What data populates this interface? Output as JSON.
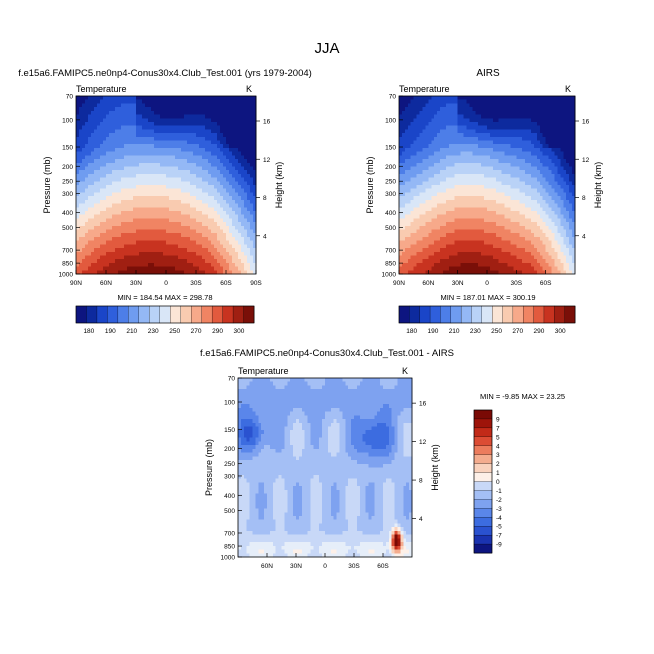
{
  "page": {
    "season": "JJA",
    "panel_model_title": "f.e15a6.FAMIPC5.ne0np4-Conus30x4.Club_Test.001 (yrs 1979-2004)",
    "panel_obs_title": "AIRS",
    "panel_diff_title": "f.e15a6.FAMIPC5.ne0np4-Conus30x4.Club_Test.001 - AIRS"
  },
  "colors": {
    "abs_palette": [
      "#0d1580",
      "#0d2a9e",
      "#1a45c8",
      "#2f5fdc",
      "#4d7ee8",
      "#6f9cf0",
      "#94b8f5",
      "#b9d2f7",
      "#d9e6f7",
      "#fbe5d6",
      "#f9cbb0",
      "#f7a98a",
      "#f08463",
      "#e25a3e",
      "#c83320",
      "#a01f12",
      "#7a0f08"
    ],
    "diff_palette": [
      "#0d1580",
      "#1a33b0",
      "#2a52d0",
      "#3c6ce0",
      "#5a86ea",
      "#7ea2f0",
      "#a4bff5",
      "#c8d8f7",
      "#e6eef9",
      "#fdf0e8",
      "#f9d2bd",
      "#f4ac8e",
      "#ec7c5d",
      "#dc4c34",
      "#c22a18",
      "#9e140a",
      "#7a0a05"
    ]
  },
  "chart_data": [
    {
      "type": "heatmap",
      "title": "f.e15a6.FAMIPC5.ne0np4-Conus30x4.Club_Test.001 (yrs 1979-2004)",
      "variable": "Temperature",
      "units": "K",
      "xlabel": "",
      "ylabel": "Pressure (mb)",
      "ylabel_right": "Height (km)",
      "x_ticks": [
        "90N",
        "60N",
        "30N",
        "0",
        "30S",
        "60S",
        "90S"
      ],
      "x_values": [
        90,
        60,
        30,
        0,
        -30,
        -60,
        -90
      ],
      "y_ticks": [
        "70",
        "100",
        "150",
        "200",
        "250",
        "300",
        "400",
        "500",
        "700",
        "850",
        "1000"
      ],
      "y_values": [
        70,
        100,
        150,
        200,
        250,
        300,
        400,
        500,
        700,
        850,
        1000
      ],
      "y_scale": "log",
      "right_ticks": [
        "16",
        "12",
        "8",
        "4"
      ],
      "right_values": [
        16,
        12,
        8,
        4
      ],
      "min": 184.54,
      "max": 298.78,
      "stats_text": "MIN = 184.54   MAX = 298.78",
      "levels": [
        180,
        185,
        190,
        200,
        210,
        220,
        230,
        240,
        250,
        260,
        270,
        280,
        290,
        295,
        300
      ],
      "colorbar_labels": [
        "180",
        "190",
        "210",
        "230",
        "250",
        "270",
        "290",
        "300"
      ]
    },
    {
      "type": "heatmap",
      "title": "AIRS",
      "variable": "Temperature",
      "units": "K",
      "xlabel": "",
      "ylabel": "Pressure (mb)",
      "ylabel_right": "Height (km)",
      "x_ticks": [
        "90N",
        "60N",
        "30N",
        "0",
        "30S",
        "60S"
      ],
      "x_values": [
        90,
        60,
        30,
        0,
        -30,
        -60
      ],
      "y_ticks": [
        "70",
        "100",
        "150",
        "200",
        "250",
        "300",
        "400",
        "500",
        "700",
        "850",
        "1000"
      ],
      "y_values": [
        70,
        100,
        150,
        200,
        250,
        300,
        400,
        500,
        700,
        850,
        1000
      ],
      "y_scale": "log",
      "right_ticks": [
        "16",
        "12",
        "8",
        "4"
      ],
      "right_values": [
        16,
        12,
        8,
        4
      ],
      "min": 187.01,
      "max": 300.19,
      "stats_text": "MIN = 187.01   MAX = 300.19",
      "levels": [
        180,
        185,
        190,
        200,
        210,
        220,
        230,
        240,
        250,
        260,
        270,
        280,
        290,
        295,
        300
      ],
      "colorbar_labels": [
        "180",
        "190",
        "210",
        "230",
        "250",
        "270",
        "290",
        "300"
      ]
    },
    {
      "type": "heatmap",
      "title": "f.e15a6.FAMIPC5.ne0np4-Conus30x4.Club_Test.001 - AIRS",
      "variable": "Temperature",
      "units": "K",
      "xlabel": "",
      "ylabel": "Pressure (mb)",
      "ylabel_right": "Height (km)",
      "x_ticks": [
        "60N",
        "30N",
        "0",
        "30S",
        "60S"
      ],
      "x_values": [
        60,
        30,
        0,
        -30,
        -60
      ],
      "y_ticks": [
        "70",
        "100",
        "150",
        "200",
        "250",
        "300",
        "400",
        "500",
        "700",
        "850",
        "1000"
      ],
      "y_values": [
        70,
        100,
        150,
        200,
        250,
        300,
        400,
        500,
        700,
        850,
        1000
      ],
      "y_scale": "log",
      "right_ticks": [
        "16",
        "12",
        "8",
        "4"
      ],
      "right_values": [
        16,
        12,
        8,
        4
      ],
      "min": -9.85,
      "max": 23.25,
      "stats_text": "MIN =  -9.85   MAX =  23.25",
      "levels": [
        -9,
        -7,
        -5,
        -4,
        -3,
        -2,
        -1,
        0,
        1,
        2,
        3,
        4,
        5,
        7,
        9
      ],
      "colorbar_labels": [
        "9",
        "7",
        "5",
        "4",
        "3",
        "2",
        "1",
        "0",
        "-1",
        "-2",
        "-3",
        "-4",
        "-5",
        "-7",
        "-9"
      ]
    }
  ]
}
